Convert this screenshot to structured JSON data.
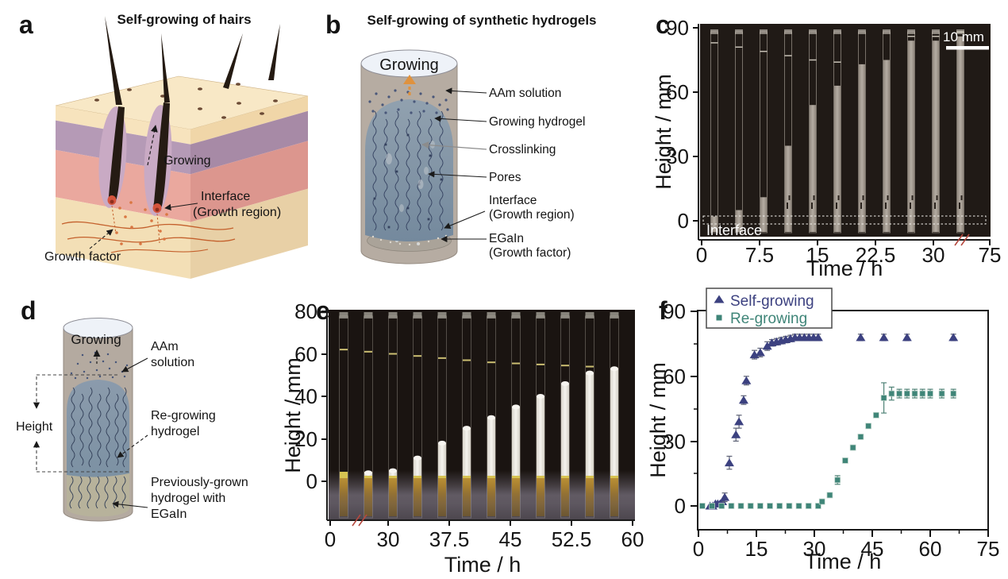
{
  "figure": {
    "panels": {
      "a": {
        "letter": "a",
        "title": "Self-growing of hairs",
        "labels": {
          "growing": "Growing",
          "interface_line1": "Interface",
          "interface_line2": "(Growth region)",
          "growth_factor": "Growth factor"
        }
      },
      "b": {
        "letter": "b",
        "title": "Self-growing of synthetic hydrogels",
        "labels": {
          "growing": "Growing",
          "aam": "AAm solution",
          "hydrogel": "Growing hydrogel",
          "crosslinking": "Crosslinking",
          "pores": "Pores",
          "interface_line1": "Interface",
          "interface_line2": "(Growth region)",
          "egain_line1": "EGaIn",
          "egain_line2": "(Growth factor)"
        }
      },
      "c": {
        "letter": "c",
        "ylabel": "Height / mm",
        "xlabel": "Time / h",
        "yticks": [
          "90",
          "60",
          "30",
          "0"
        ],
        "xticks": [
          "0",
          "7.5",
          "15",
          "22.5",
          "30",
          "75"
        ],
        "scale_bar": "10 mm",
        "interface": "Interface"
      },
      "d": {
        "letter": "d",
        "labels": {
          "growing": "Growing",
          "height": "Height",
          "aam_line1": "AAm",
          "aam_line2": "solution",
          "regrow_line1": "Re-growing",
          "regrow_line2": "hydrogel",
          "prev_line1": "Previously-grown",
          "prev_line2": "hydrogel with",
          "prev_line3": "EGaIn"
        }
      },
      "e": {
        "letter": "e",
        "ylabel": "Height / mm",
        "xlabel": "Time / h",
        "yticks": [
          "80",
          "60",
          "40",
          "20",
          "0"
        ],
        "xticks": [
          "0",
          "30",
          "37.5",
          "45",
          "52.5",
          "60"
        ]
      },
      "f": {
        "letter": "f",
        "ylabel": "Height / mm",
        "xlabel": "Time / h",
        "yticks": [
          "0",
          "30",
          "60",
          "90"
        ],
        "xticks": [
          "0",
          "15",
          "30",
          "45",
          "60",
          "75"
        ],
        "legend": [
          {
            "label": "Self-growing",
            "marker": "triangle",
            "color": "#3c4180"
          },
          {
            "label": "Re-growing",
            "marker": "square",
            "color": "#3f8578"
          }
        ]
      }
    }
  },
  "chart_data": [
    {
      "id": "c",
      "type": "photo-series",
      "description": "Time-lapse photographs of a self-growing hydrogel column in a glass tube",
      "xlabel": "Time / h",
      "ylabel": "Height / mm",
      "xticks": [
        0,
        7.5,
        15,
        22.5,
        30,
        75
      ],
      "yticks": [
        0,
        30,
        60,
        90
      ],
      "x_axis_break": true,
      "scale_bar": "10 mm",
      "interface_label": "Interface",
      "tubes": [
        {
          "gel_height_mm": 2,
          "solution_level_mm": 83
        },
        {
          "gel_height_mm": 5,
          "solution_level_mm": 81
        },
        {
          "gel_height_mm": 11,
          "solution_level_mm": 79
        },
        {
          "gel_height_mm": 35,
          "solution_level_mm": 77
        },
        {
          "gel_height_mm": 54,
          "solution_level_mm": 75
        },
        {
          "gel_height_mm": 63,
          "solution_level_mm": 74
        },
        {
          "gel_height_mm": 73,
          "solution_level_mm": 74
        },
        {
          "gel_height_mm": 75,
          "solution_level_mm": 73
        },
        {
          "gel_height_mm": 84,
          "solution_level_mm": 86
        },
        {
          "gel_height_mm": 84,
          "solution_level_mm": 86
        },
        {
          "gel_height_mm": 86,
          "solution_level_mm": 88
        }
      ]
    },
    {
      "id": "e",
      "type": "photo-series",
      "description": "Time-lapse photographs of a re-growing hydrogel (white) on previously-grown hydrogel with EGaIn (amber)",
      "xlabel": "Time / h",
      "ylabel": "Height / mm",
      "xticks": [
        0,
        30,
        37.5,
        45,
        52.5,
        60
      ],
      "yticks": [
        0,
        20,
        40,
        60,
        80
      ],
      "x_axis_break": true,
      "tubes": [
        {
          "gel_height_mm": 3,
          "solution_level_mm": 62
        },
        {
          "gel_height_mm": 4,
          "solution_level_mm": 61
        },
        {
          "gel_height_mm": 5,
          "solution_level_mm": 60
        },
        {
          "gel_height_mm": 11,
          "solution_level_mm": 59
        },
        {
          "gel_height_mm": 18,
          "solution_level_mm": 58
        },
        {
          "gel_height_mm": 25,
          "solution_level_mm": 57
        },
        {
          "gel_height_mm": 30,
          "solution_level_mm": 56
        },
        {
          "gel_height_mm": 35,
          "solution_level_mm": 55.5
        },
        {
          "gel_height_mm": 40,
          "solution_level_mm": 55
        },
        {
          "gel_height_mm": 46,
          "solution_level_mm": 54.5
        },
        {
          "gel_height_mm": 51,
          "solution_level_mm": 54
        },
        {
          "gel_height_mm": 53,
          "solution_level_mm": 53.5
        }
      ]
    },
    {
      "id": "f",
      "type": "scatter",
      "xlabel": "Time / h",
      "ylabel": "Height / mm",
      "xlim": [
        0,
        75
      ],
      "ylim": [
        -11,
        90
      ],
      "legend_position": "top-left",
      "series": [
        {
          "name": "Self-growing",
          "marker": "triangle",
          "color": "#3c4180",
          "error_color": "#5d6275",
          "points": [
            [
              3,
              0,
              0
            ],
            [
              3.7,
              0,
              0
            ],
            [
              4.4,
              1,
              0
            ],
            [
              5,
              1,
              0
            ],
            [
              5.6,
              1,
              0
            ],
            [
              6.2,
              2,
              0
            ],
            [
              6.8,
              4,
              2
            ],
            [
              8,
              20,
              3
            ],
            [
              9.7,
              33,
              3
            ],
            [
              10.5,
              39,
              3
            ],
            [
              11.7,
              49,
              2
            ],
            [
              12.4,
              58,
              2
            ],
            [
              14.5,
              70,
              2
            ],
            [
              16,
              71,
              2
            ],
            [
              17.8,
              74,
              2
            ],
            [
              19,
              75.5,
              1.5
            ],
            [
              20.2,
              76,
              1.5
            ],
            [
              21.4,
              76.5,
              1.5
            ],
            [
              22.6,
              77,
              1.5
            ],
            [
              23.8,
              77.5,
              1.5
            ],
            [
              25,
              78,
              1.5
            ],
            [
              26.2,
              78,
              1.5
            ],
            [
              27.4,
              78,
              1.5
            ],
            [
              28.6,
              78,
              1.5
            ],
            [
              29.8,
              78,
              1.5
            ],
            [
              31,
              78,
              1.5
            ],
            [
              42,
              78,
              1.5
            ],
            [
              48,
              78,
              1.5
            ],
            [
              54,
              78,
              1.5
            ],
            [
              66,
              78,
              1.5
            ]
          ]
        },
        {
          "name": "Re-growing",
          "marker": "square",
          "color": "#3f8578",
          "error_color": "#4f8276",
          "points": [
            [
              1,
              0,
              0
            ],
            [
              3.5,
              0,
              0
            ],
            [
              6,
              0,
              0
            ],
            [
              8.5,
              0,
              0
            ],
            [
              11,
              0,
              0
            ],
            [
              13.5,
              0,
              0
            ],
            [
              16,
              0,
              0
            ],
            [
              18.5,
              0,
              0
            ],
            [
              21,
              0,
              0
            ],
            [
              23.5,
              0,
              0
            ],
            [
              26,
              0,
              0
            ],
            [
              28.5,
              0,
              0
            ],
            [
              31,
              0,
              0
            ],
            [
              32,
              2,
              0
            ],
            [
              34,
              5,
              1
            ],
            [
              36,
              12,
              2
            ],
            [
              38,
              21,
              1
            ],
            [
              40,
              27,
              1
            ],
            [
              42,
              32,
              1
            ],
            [
              44,
              37,
              1
            ],
            [
              46,
              42,
              1
            ],
            [
              48,
              50,
              7
            ],
            [
              50,
              52,
              3
            ],
            [
              52,
              52,
              2
            ],
            [
              54,
              52,
              2
            ],
            [
              56,
              52,
              2
            ],
            [
              58,
              52,
              2
            ],
            [
              60,
              52,
              2
            ],
            [
              63,
              52,
              2
            ],
            [
              66,
              52,
              2
            ]
          ]
        }
      ]
    }
  ]
}
